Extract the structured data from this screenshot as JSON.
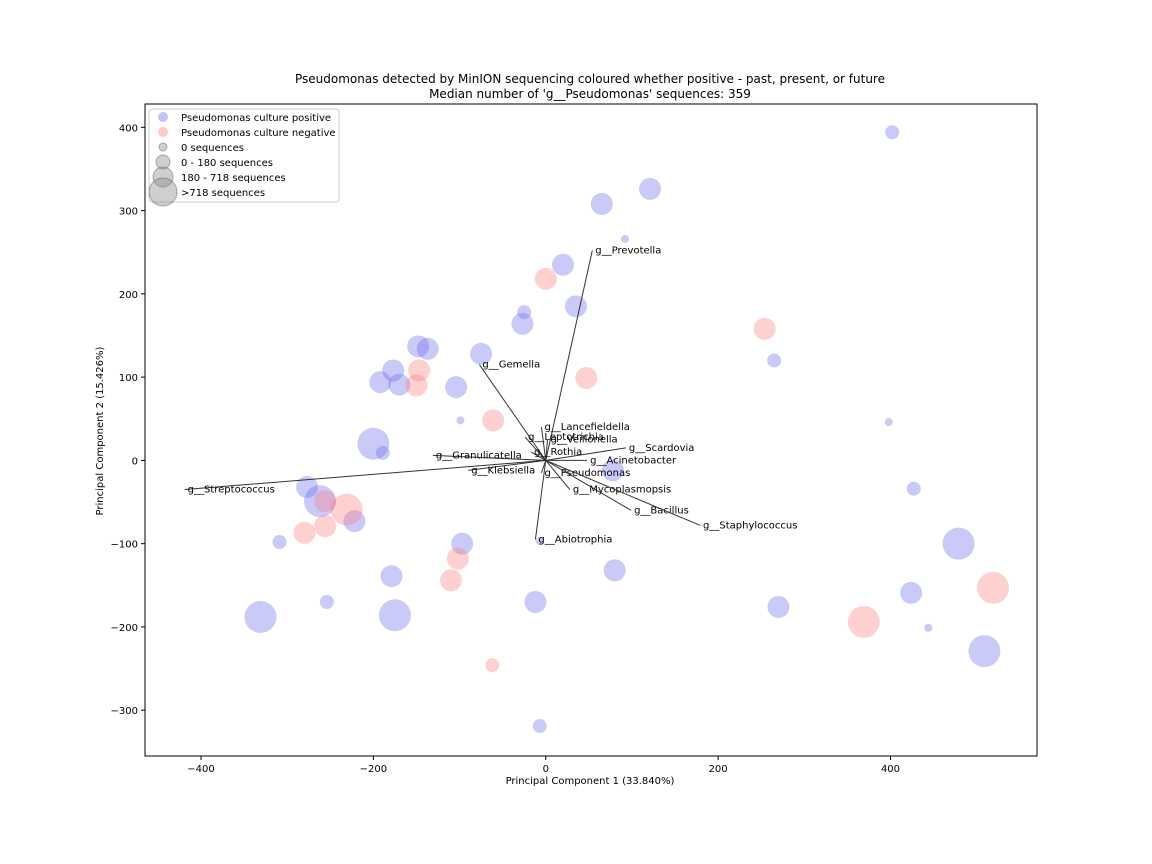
{
  "chart_data": {
    "type": "scatter",
    "title": "Pseudomonas detected by MinION sequencing coloured whether positive - past, present, or future",
    "subtitle": "Median number of 'g__Pseudomonas' sequences: 359",
    "xlabel": "Principal Component 1 (33.840%)",
    "ylabel": "Principal Component 2 (15.426%)",
    "xlim": [
      -465,
      570
    ],
    "ylim": [
      -355,
      428
    ],
    "xticks": [
      -400,
      -200,
      0,
      200,
      400
    ],
    "yticks": [
      -300,
      -200,
      -100,
      0,
      100,
      200,
      300,
      400
    ],
    "grid": false,
    "legend_position": "top-left",
    "colors": {
      "positive": "#6666ee",
      "negative": "#ff7777",
      "size_key": "#888888",
      "axes": "#000000",
      "arrow": "#333333"
    },
    "legend": [
      {
        "label": "Pseudomonas culture positive",
        "kind": "color",
        "color": "positive"
      },
      {
        "label": "Pseudomonas culture negative",
        "kind": "color",
        "color": "negative"
      },
      {
        "label": "0 sequences",
        "kind": "size",
        "size": "tiny"
      },
      {
        "label": "0 - 180 sequences",
        "kind": "size",
        "size": "small"
      },
      {
        "label": "180 - 718 sequences",
        "kind": "size",
        "size": "medium"
      },
      {
        "label": ">718 sequences",
        "kind": "size",
        "size": "large"
      }
    ],
    "series": [
      {
        "name": "Pseudomonas culture positive",
        "points": [
          {
            "x": 402,
            "y": 394,
            "size": "small"
          },
          {
            "x": 121,
            "y": 326,
            "size": "medium"
          },
          {
            "x": 65,
            "y": 308,
            "size": "medium"
          },
          {
            "x": 92,
            "y": 266,
            "size": "tiny"
          },
          {
            "x": 20,
            "y": 235,
            "size": "medium"
          },
          {
            "x": 35,
            "y": 185,
            "size": "medium"
          },
          {
            "x": -25,
            "y": 178,
            "size": "small"
          },
          {
            "x": -27,
            "y": 164,
            "size": "medium"
          },
          {
            "x": -75,
            "y": 128,
            "size": "medium"
          },
          {
            "x": -148,
            "y": 137,
            "size": "medium"
          },
          {
            "x": -137,
            "y": 134,
            "size": "medium"
          },
          {
            "x": -177,
            "y": 108,
            "size": "medium"
          },
          {
            "x": -192,
            "y": 94,
            "size": "medium"
          },
          {
            "x": -170,
            "y": 91,
            "size": "medium"
          },
          {
            "x": -104,
            "y": 88,
            "size": "medium"
          },
          {
            "x": 265,
            "y": 120,
            "size": "small"
          },
          {
            "x": -99,
            "y": 48,
            "size": "tiny"
          },
          {
            "x": 398,
            "y": 46,
            "size": "tiny"
          },
          {
            "x": -200,
            "y": 20,
            "size": "large"
          },
          {
            "x": -189,
            "y": 9,
            "size": "small"
          },
          {
            "x": 78,
            "y": -12,
            "size": "medium"
          },
          {
            "x": 427,
            "y": -34,
            "size": "small"
          },
          {
            "x": -277,
            "y": -32,
            "size": "medium"
          },
          {
            "x": -262,
            "y": -49,
            "size": "large"
          },
          {
            "x": -222,
            "y": -73,
            "size": "medium"
          },
          {
            "x": -309,
            "y": -98,
            "size": "small"
          },
          {
            "x": -97,
            "y": -100,
            "size": "medium"
          },
          {
            "x": -7,
            "y": -97,
            "size": "tiny"
          },
          {
            "x": 479,
            "y": -100,
            "size": "large"
          },
          {
            "x": -179,
            "y": -139,
            "size": "medium"
          },
          {
            "x": 80,
            "y": -132,
            "size": "medium"
          },
          {
            "x": 424,
            "y": -159,
            "size": "medium"
          },
          {
            "x": -254,
            "y": -170,
            "size": "small"
          },
          {
            "x": -12,
            "y": -170,
            "size": "medium"
          },
          {
            "x": 270,
            "y": -176,
            "size": "medium"
          },
          {
            "x": -331,
            "y": -188,
            "size": "large"
          },
          {
            "x": -175,
            "y": -186,
            "size": "large"
          },
          {
            "x": 444,
            "y": -201,
            "size": "tiny"
          },
          {
            "x": 509,
            "y": -229,
            "size": "large"
          },
          {
            "x": -7,
            "y": -319,
            "size": "small"
          }
        ]
      },
      {
        "name": "Pseudomonas culture negative",
        "points": [
          {
            "x": 0,
            "y": 218,
            "size": "medium"
          },
          {
            "x": 254,
            "y": 158,
            "size": "medium"
          },
          {
            "x": 47,
            "y": 99,
            "size": "medium"
          },
          {
            "x": -147,
            "y": 108,
            "size": "medium"
          },
          {
            "x": -150,
            "y": 90,
            "size": "medium"
          },
          {
            "x": -61,
            "y": 48,
            "size": "medium"
          },
          {
            "x": -256,
            "y": -49,
            "size": "medium"
          },
          {
            "x": -231,
            "y": -59,
            "size": "large"
          },
          {
            "x": -256,
            "y": -79,
            "size": "medium"
          },
          {
            "x": -280,
            "y": -87,
            "size": "medium"
          },
          {
            "x": -102,
            "y": -118,
            "size": "medium"
          },
          {
            "x": -110,
            "y": -144,
            "size": "medium"
          },
          {
            "x": 519,
            "y": -153,
            "size": "large"
          },
          {
            "x": 369,
            "y": -194,
            "size": "large"
          },
          {
            "x": -62,
            "y": -246,
            "size": "small"
          }
        ]
      }
    ],
    "loadings": [
      {
        "name": "g__Prevotella",
        "x": 54,
        "y": 252
      },
      {
        "name": "g__Gemella",
        "x": -77,
        "y": 115
      },
      {
        "name": "g__Lancefieldella",
        "x": -5,
        "y": 40
      },
      {
        "name": "g__Leptotrichia",
        "x": -24,
        "y": 28
      },
      {
        "name": "g__Veillonella",
        "x": 2,
        "y": 25
      },
      {
        "name": "g__Scardovia",
        "x": 93,
        "y": 15
      },
      {
        "name": "g__Rothia",
        "x": -17,
        "y": 10
      },
      {
        "name": "g__Granulicatella",
        "x": -131,
        "y": 6
      },
      {
        "name": "g__Acinetobacter",
        "x": 48,
        "y": 0
      },
      {
        "name": "g__Klebsiella",
        "x": -90,
        "y": -12
      },
      {
        "name": "g__Pseudomonas",
        "x": -5,
        "y": -15
      },
      {
        "name": "g__Mycoplasmopsis",
        "x": 28,
        "y": -35
      },
      {
        "name": "g__Bacillus",
        "x": 99,
        "y": -60
      },
      {
        "name": "g__Staphylococcus",
        "x": 179,
        "y": -78
      },
      {
        "name": "g__Streptococcus",
        "x": -419,
        "y": -35
      },
      {
        "name": "g__Abiotrophia",
        "x": -12,
        "y": -95
      }
    ]
  }
}
